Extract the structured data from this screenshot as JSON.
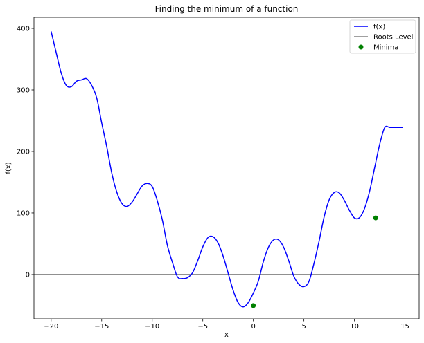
{
  "chart_data": {
    "type": "line",
    "title": "Finding the minimum of a function",
    "xlabel": "x",
    "ylabel": "f(x)",
    "xlim": [
      -21.7,
      16.4
    ],
    "ylim": [
      -72,
      418
    ],
    "xticks": [
      -20,
      -15,
      -10,
      -5,
      0,
      5,
      10,
      15
    ],
    "yticks": [
      0,
      100,
      200,
      300,
      400
    ],
    "grid": false,
    "legend_position": "top-right",
    "series": [
      {
        "name": "f(x)",
        "kind": "line",
        "color": "#0000ff",
        "x": [
          -20.0,
          -19.5,
          -19.0,
          -18.5,
          -18.0,
          -17.5,
          -17.0,
          -16.5,
          -16.0,
          -15.5,
          -15.0,
          -14.5,
          -14.0,
          -13.5,
          -13.0,
          -12.5,
          -12.0,
          -11.5,
          -11.0,
          -10.5,
          -10.0,
          -9.5,
          -9.0,
          -8.5,
          -8.0,
          -7.5,
          -7.0,
          -6.5,
          -6.0,
          -5.5,
          -5.0,
          -4.5,
          -4.0,
          -3.5,
          -3.0,
          -2.5,
          -2.0,
          -1.5,
          -1.0,
          -0.5,
          0.0,
          0.5,
          1.0,
          1.5,
          2.0,
          2.5,
          3.0,
          3.5,
          4.0,
          4.5,
          5.0,
          5.5,
          6.0,
          6.5,
          7.0,
          7.5,
          8.0,
          8.5,
          9.0,
          9.5,
          10.0,
          10.5,
          11.0,
          11.5,
          12.0,
          12.5,
          13.0,
          13.5,
          14.0,
          14.5,
          14.8
        ],
        "y": [
          395.0,
          360.5,
          327.2,
          307.2,
          305.2,
          314.1,
          316.3,
          318.3,
          307.6,
          287.4,
          246.3,
          207.7,
          164.5,
          133.5,
          115.3,
          110.5,
          117.6,
          130.8,
          143.9,
          148.0,
          142.9,
          119.9,
          88.7,
          47.2,
          19.4,
          -3.9,
          -6.6,
          -5.0,
          3.3,
          22.6,
          44.9,
          59.8,
          61.5,
          51.6,
          30.4,
          2.7,
          -25.5,
          -45.8,
          -52.6,
          -45.5,
          -30.1,
          -10.4,
          21.4,
          44.5,
          56.2,
          56.2,
          44.3,
          22.3,
          -2.6,
          -15.9,
          -19.7,
          -11.3,
          18.1,
          54.0,
          93.6,
          121.4,
          133.3,
          132.6,
          120.5,
          104.3,
          91.9,
          92.4,
          107.4,
          135.3,
          173.8,
          211.8,
          239.0,
          239.0,
          239.0,
          239.0,
          239.0
        ]
      },
      {
        "name": "Roots Level",
        "kind": "hline",
        "color": "#808080",
        "y": 0
      },
      {
        "name": "Minima",
        "kind": "scatter",
        "color": "#008000",
        "x": [
          0.0,
          12.1
        ],
        "y": [
          -50.5,
          92.0
        ]
      }
    ]
  }
}
